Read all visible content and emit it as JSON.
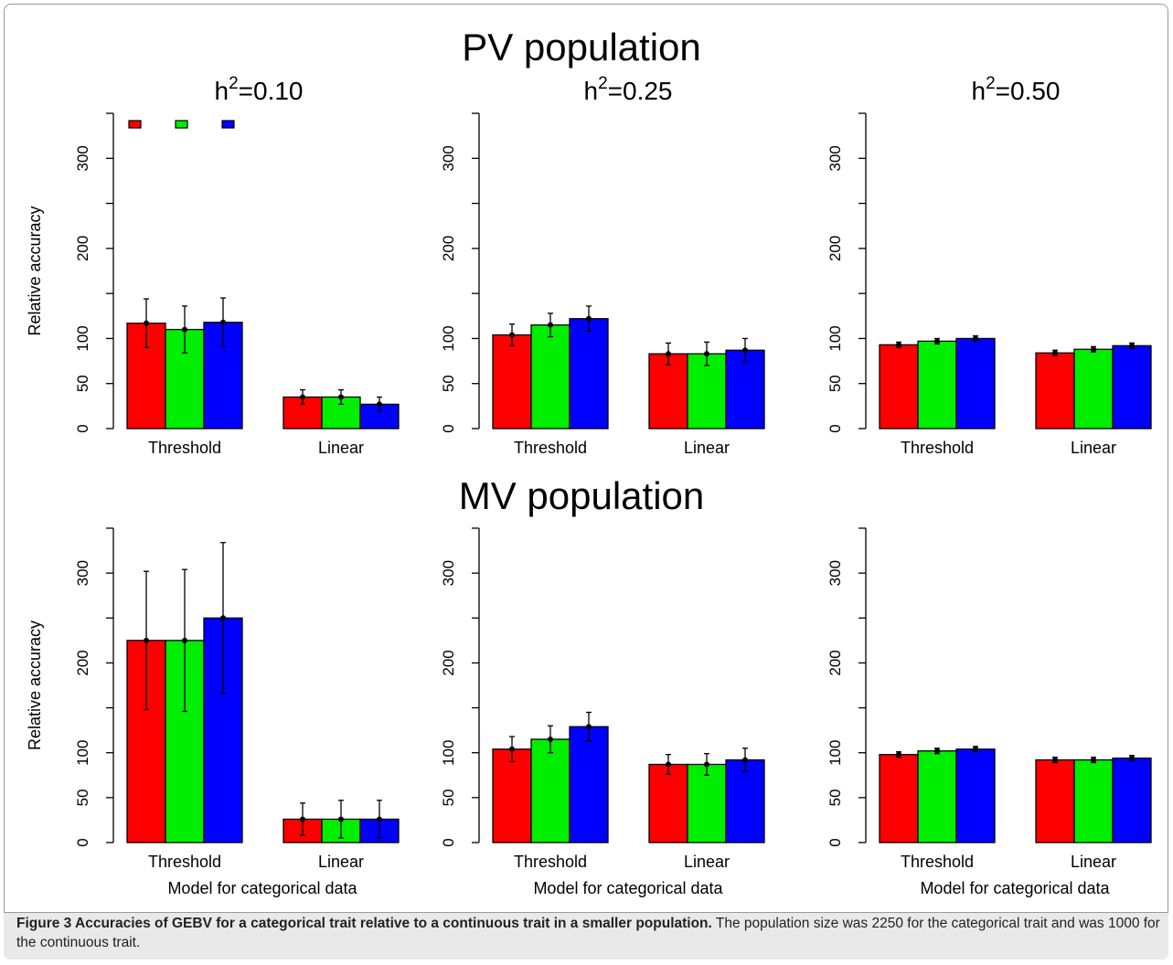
{
  "figure": {
    "group_titles": [
      "PV population",
      "MV population"
    ],
    "caption_lead": "Figure 3 Accuracies of GEBV for a categorical trait relative to a continuous trait in a smaller population.",
    "caption_rest": "The population size was 2250 for the categorical trait and was 1000 for the continuous trait."
  },
  "colors": {
    "series": [
      "#ff0000",
      "#00ee00",
      "#0000ff"
    ],
    "error_bar": "#000000",
    "axis": "#000000"
  },
  "chart_data": [
    {
      "type": "bar",
      "group": "PV population",
      "title": "h",
      "title_sup": "2",
      "title_suffix": "=0.10",
      "categories": [
        "Threshold",
        "Linear"
      ],
      "ylabel": "Relative accuracy",
      "xlabel": "",
      "ylim": [
        0,
        350
      ],
      "yticks": [
        "0",
        "50",
        "100",
        "200",
        "300"
      ],
      "legend": "top-left",
      "series": [
        {
          "values": [
            117,
            35
          ],
          "err": [
            27,
            8
          ]
        },
        {
          "values": [
            110,
            35
          ],
          "err": [
            26,
            8
          ]
        },
        {
          "values": [
            118,
            27
          ],
          "err": [
            27,
            8
          ]
        }
      ]
    },
    {
      "type": "bar",
      "group": "PV population",
      "title": "h",
      "title_sup": "2",
      "title_suffix": "=0.25",
      "categories": [
        "Threshold",
        "Linear"
      ],
      "ylabel": "",
      "xlabel": "",
      "ylim": [
        0,
        350
      ],
      "yticks": [
        "0",
        "50",
        "100",
        "200",
        "300"
      ],
      "series": [
        {
          "values": [
            104,
            83
          ],
          "err": [
            12,
            12
          ]
        },
        {
          "values": [
            115,
            83
          ],
          "err": [
            13,
            13
          ]
        },
        {
          "values": [
            122,
            87
          ],
          "err": [
            14,
            13
          ]
        }
      ]
    },
    {
      "type": "bar",
      "group": "PV population",
      "title": "h",
      "title_sup": "2",
      "title_suffix": "=0.50",
      "categories": [
        "Threshold",
        "Linear"
      ],
      "ylabel": "",
      "xlabel": "",
      "ylim": [
        0,
        350
      ],
      "yticks": [
        "0",
        "50",
        "100",
        "200",
        "300"
      ],
      "series": [
        {
          "values": [
            93,
            84
          ],
          "err": [
            3,
            3
          ]
        },
        {
          "values": [
            97,
            88
          ],
          "err": [
            3,
            3
          ]
        },
        {
          "values": [
            100,
            92
          ],
          "err": [
            3,
            3
          ]
        }
      ]
    },
    {
      "type": "bar",
      "group": "MV population",
      "title": "",
      "title_sup": "",
      "title_suffix": "",
      "categories": [
        "Threshold",
        "Linear"
      ],
      "ylabel": "Relative accuracy",
      "xlabel": "Model for categorical data",
      "ylim": [
        0,
        350
      ],
      "yticks": [
        "0",
        "50",
        "100",
        "200",
        "300"
      ],
      "series": [
        {
          "values": [
            225,
            26
          ],
          "err": [
            77,
            18
          ]
        },
        {
          "values": [
            225,
            26
          ],
          "err": [
            79,
            21
          ]
        },
        {
          "values": [
            250,
            26
          ],
          "err": [
            84,
            21
          ]
        }
      ]
    },
    {
      "type": "bar",
      "group": "MV population",
      "title": "",
      "title_sup": "",
      "title_suffix": "",
      "categories": [
        "Threshold",
        "Linear"
      ],
      "ylabel": "",
      "xlabel": "Model for categorical data",
      "ylim": [
        0,
        350
      ],
      "yticks": [
        "0",
        "50",
        "100",
        "200",
        "300"
      ],
      "series": [
        {
          "values": [
            104,
            87
          ],
          "err": [
            14,
            11
          ]
        },
        {
          "values": [
            115,
            87
          ],
          "err": [
            15,
            12
          ]
        },
        {
          "values": [
            129,
            92
          ],
          "err": [
            16,
            13
          ]
        }
      ]
    },
    {
      "type": "bar",
      "group": "MV population",
      "title": "",
      "title_sup": "",
      "title_suffix": "",
      "categories": [
        "Threshold",
        "Linear"
      ],
      "ylabel": "",
      "xlabel": "Model for categorical data",
      "ylim": [
        0,
        350
      ],
      "yticks": [
        "0",
        "50",
        "100",
        "200",
        "300"
      ],
      "series": [
        {
          "values": [
            98,
            92
          ],
          "err": [
            3,
            3
          ]
        },
        {
          "values": [
            102,
            92
          ],
          "err": [
            3,
            3
          ]
        },
        {
          "values": [
            104,
            94
          ],
          "err": [
            3,
            3
          ]
        }
      ]
    }
  ]
}
